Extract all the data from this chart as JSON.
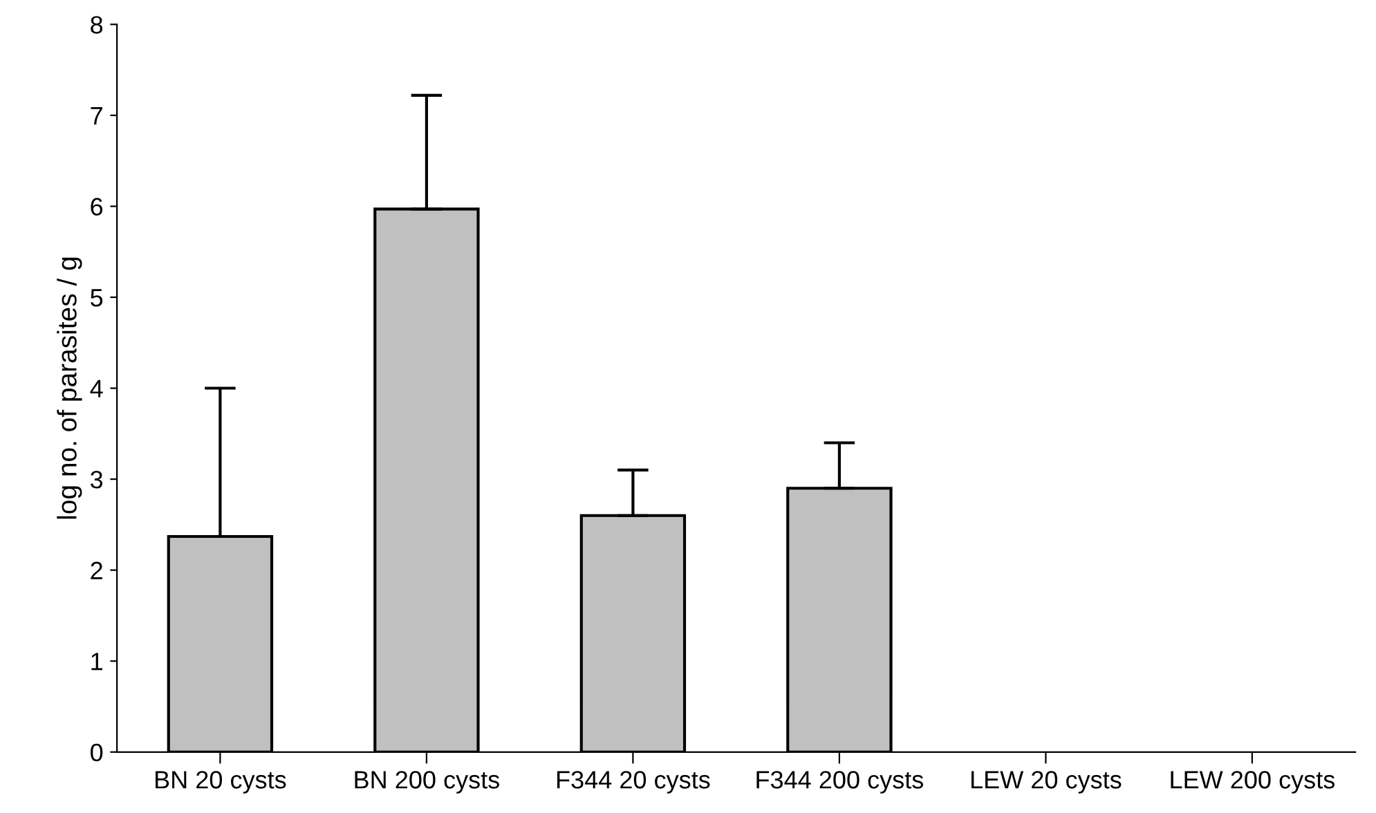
{
  "chart_data": {
    "type": "bar",
    "ylabel": "log no. of parasites / g",
    "categories": [
      "BN 20 cysts",
      "BN 200 cysts",
      "F344 20 cysts",
      "F344 200 cysts",
      "LEW 20 cysts",
      "LEW 200 cysts"
    ],
    "values": [
      2.37,
      5.97,
      2.6,
      2.9,
      null,
      null
    ],
    "errors": [
      [
        2.37,
        4.0
      ],
      [
        5.97,
        7.22
      ],
      [
        2.6,
        3.1
      ],
      [
        2.9,
        3.4
      ],
      null,
      null
    ],
    "color": "#c0c0c0",
    "ylim": [
      0,
      8
    ],
    "yticks": [
      0,
      1,
      2,
      3,
      4,
      5,
      6,
      7,
      8
    ],
    "grid": false,
    "legend": false
  }
}
